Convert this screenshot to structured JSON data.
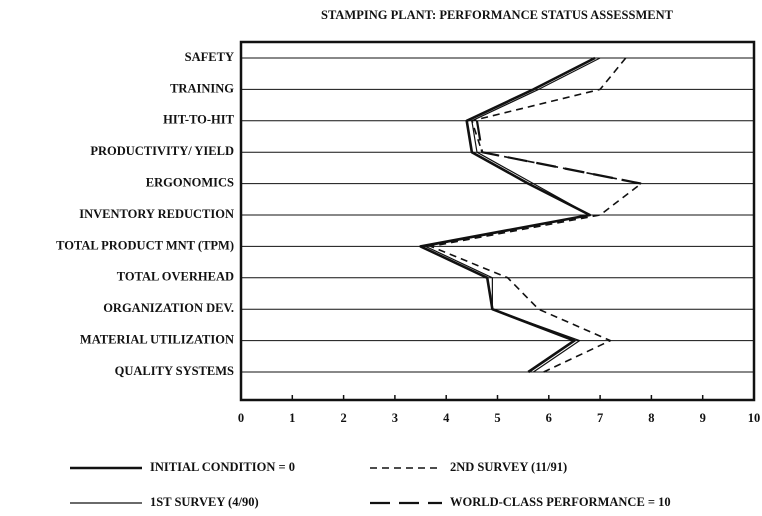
{
  "chart_data": {
    "type": "line",
    "title": "STAMPING PLANT: PERFORMANCE STATUS ASSESSMENT",
    "categories": [
      "SAFETY",
      "TRAINING",
      "HIT-TO-HIT",
      "PRODUCTIVITY/ YIELD",
      "ERGONOMICS",
      "INVENTORY REDUCTION",
      "TOTAL PRODUCT MNT (TPM)",
      "TOTAL OVERHEAD",
      "ORGANIZATION DEV.",
      "MATERIAL UTILIZATION",
      "QUALITY SYSTEMS"
    ],
    "series": [
      {
        "name": "INITIAL CONDITION = 0",
        "color": "#111111",
        "line_width": 2.6,
        "dash": "none",
        "values": [
          6.9,
          5.7,
          4.4,
          4.5,
          5.6,
          6.8,
          3.5,
          4.8,
          4.9,
          6.5,
          5.6
        ]
      },
      {
        "name": "1ST SURVEY (4/90)",
        "color": "#111111",
        "line_width": 1.2,
        "dash": "none",
        "values": [
          7.0,
          5.8,
          4.5,
          4.6,
          5.7,
          6.8,
          3.6,
          4.9,
          4.9,
          6.6,
          5.7
        ]
      },
      {
        "name": "2ND SURVEY (11/91)",
        "color": "#111111",
        "line_width": 1.6,
        "dash": "7,5",
        "values": [
          7.5,
          7.0,
          4.5,
          4.7,
          7.8,
          7.0,
          3.7,
          5.2,
          5.8,
          7.2,
          5.9
        ]
      },
      {
        "name": "WORLD-CLASS PERFORMANCE = 10",
        "color": "#111111",
        "line_width": 2.2,
        "dash": "20,9",
        "values": [
          null,
          null,
          4.6,
          4.7,
          7.8,
          null,
          null,
          null,
          null,
          null,
          null
        ]
      }
    ],
    "xlim": [
      0,
      10
    ],
    "xticks": [
      0,
      1,
      2,
      3,
      4,
      5,
      6,
      7,
      8,
      9,
      10
    ],
    "grid": true
  }
}
